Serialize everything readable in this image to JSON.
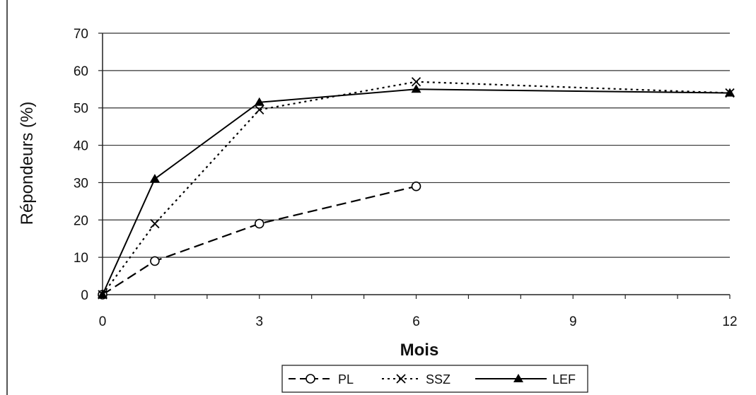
{
  "chart_data": {
    "type": "line",
    "title": "",
    "xlabel": "Mois",
    "ylabel": "Répondeurs (%)",
    "xlim": [
      0,
      12
    ],
    "ylim": [
      0,
      70
    ],
    "x_ticks": [
      "0",
      "3",
      "6",
      "9",
      "12"
    ],
    "y_ticks": [
      "0",
      "10",
      "20",
      "30",
      "40",
      "50",
      "60",
      "70"
    ],
    "grid": "horizontal",
    "legend_position": "bottom",
    "series": [
      {
        "name": "PL",
        "style": "dashed",
        "marker": "open-circle",
        "color": "#000000",
        "x": [
          0,
          1,
          3,
          6
        ],
        "y": [
          0,
          9,
          19,
          29
        ]
      },
      {
        "name": "SSZ",
        "style": "dotted",
        "marker": "x",
        "color": "#000000",
        "x": [
          0,
          1,
          3,
          6,
          12
        ],
        "y": [
          0,
          19,
          49.5,
          57,
          54
        ]
      },
      {
        "name": "LEF",
        "style": "solid",
        "marker": "filled-triangle",
        "color": "#000000",
        "x": [
          0,
          1,
          3,
          6,
          12
        ],
        "y": [
          0,
          31,
          51.5,
          55,
          54
        ]
      }
    ]
  }
}
